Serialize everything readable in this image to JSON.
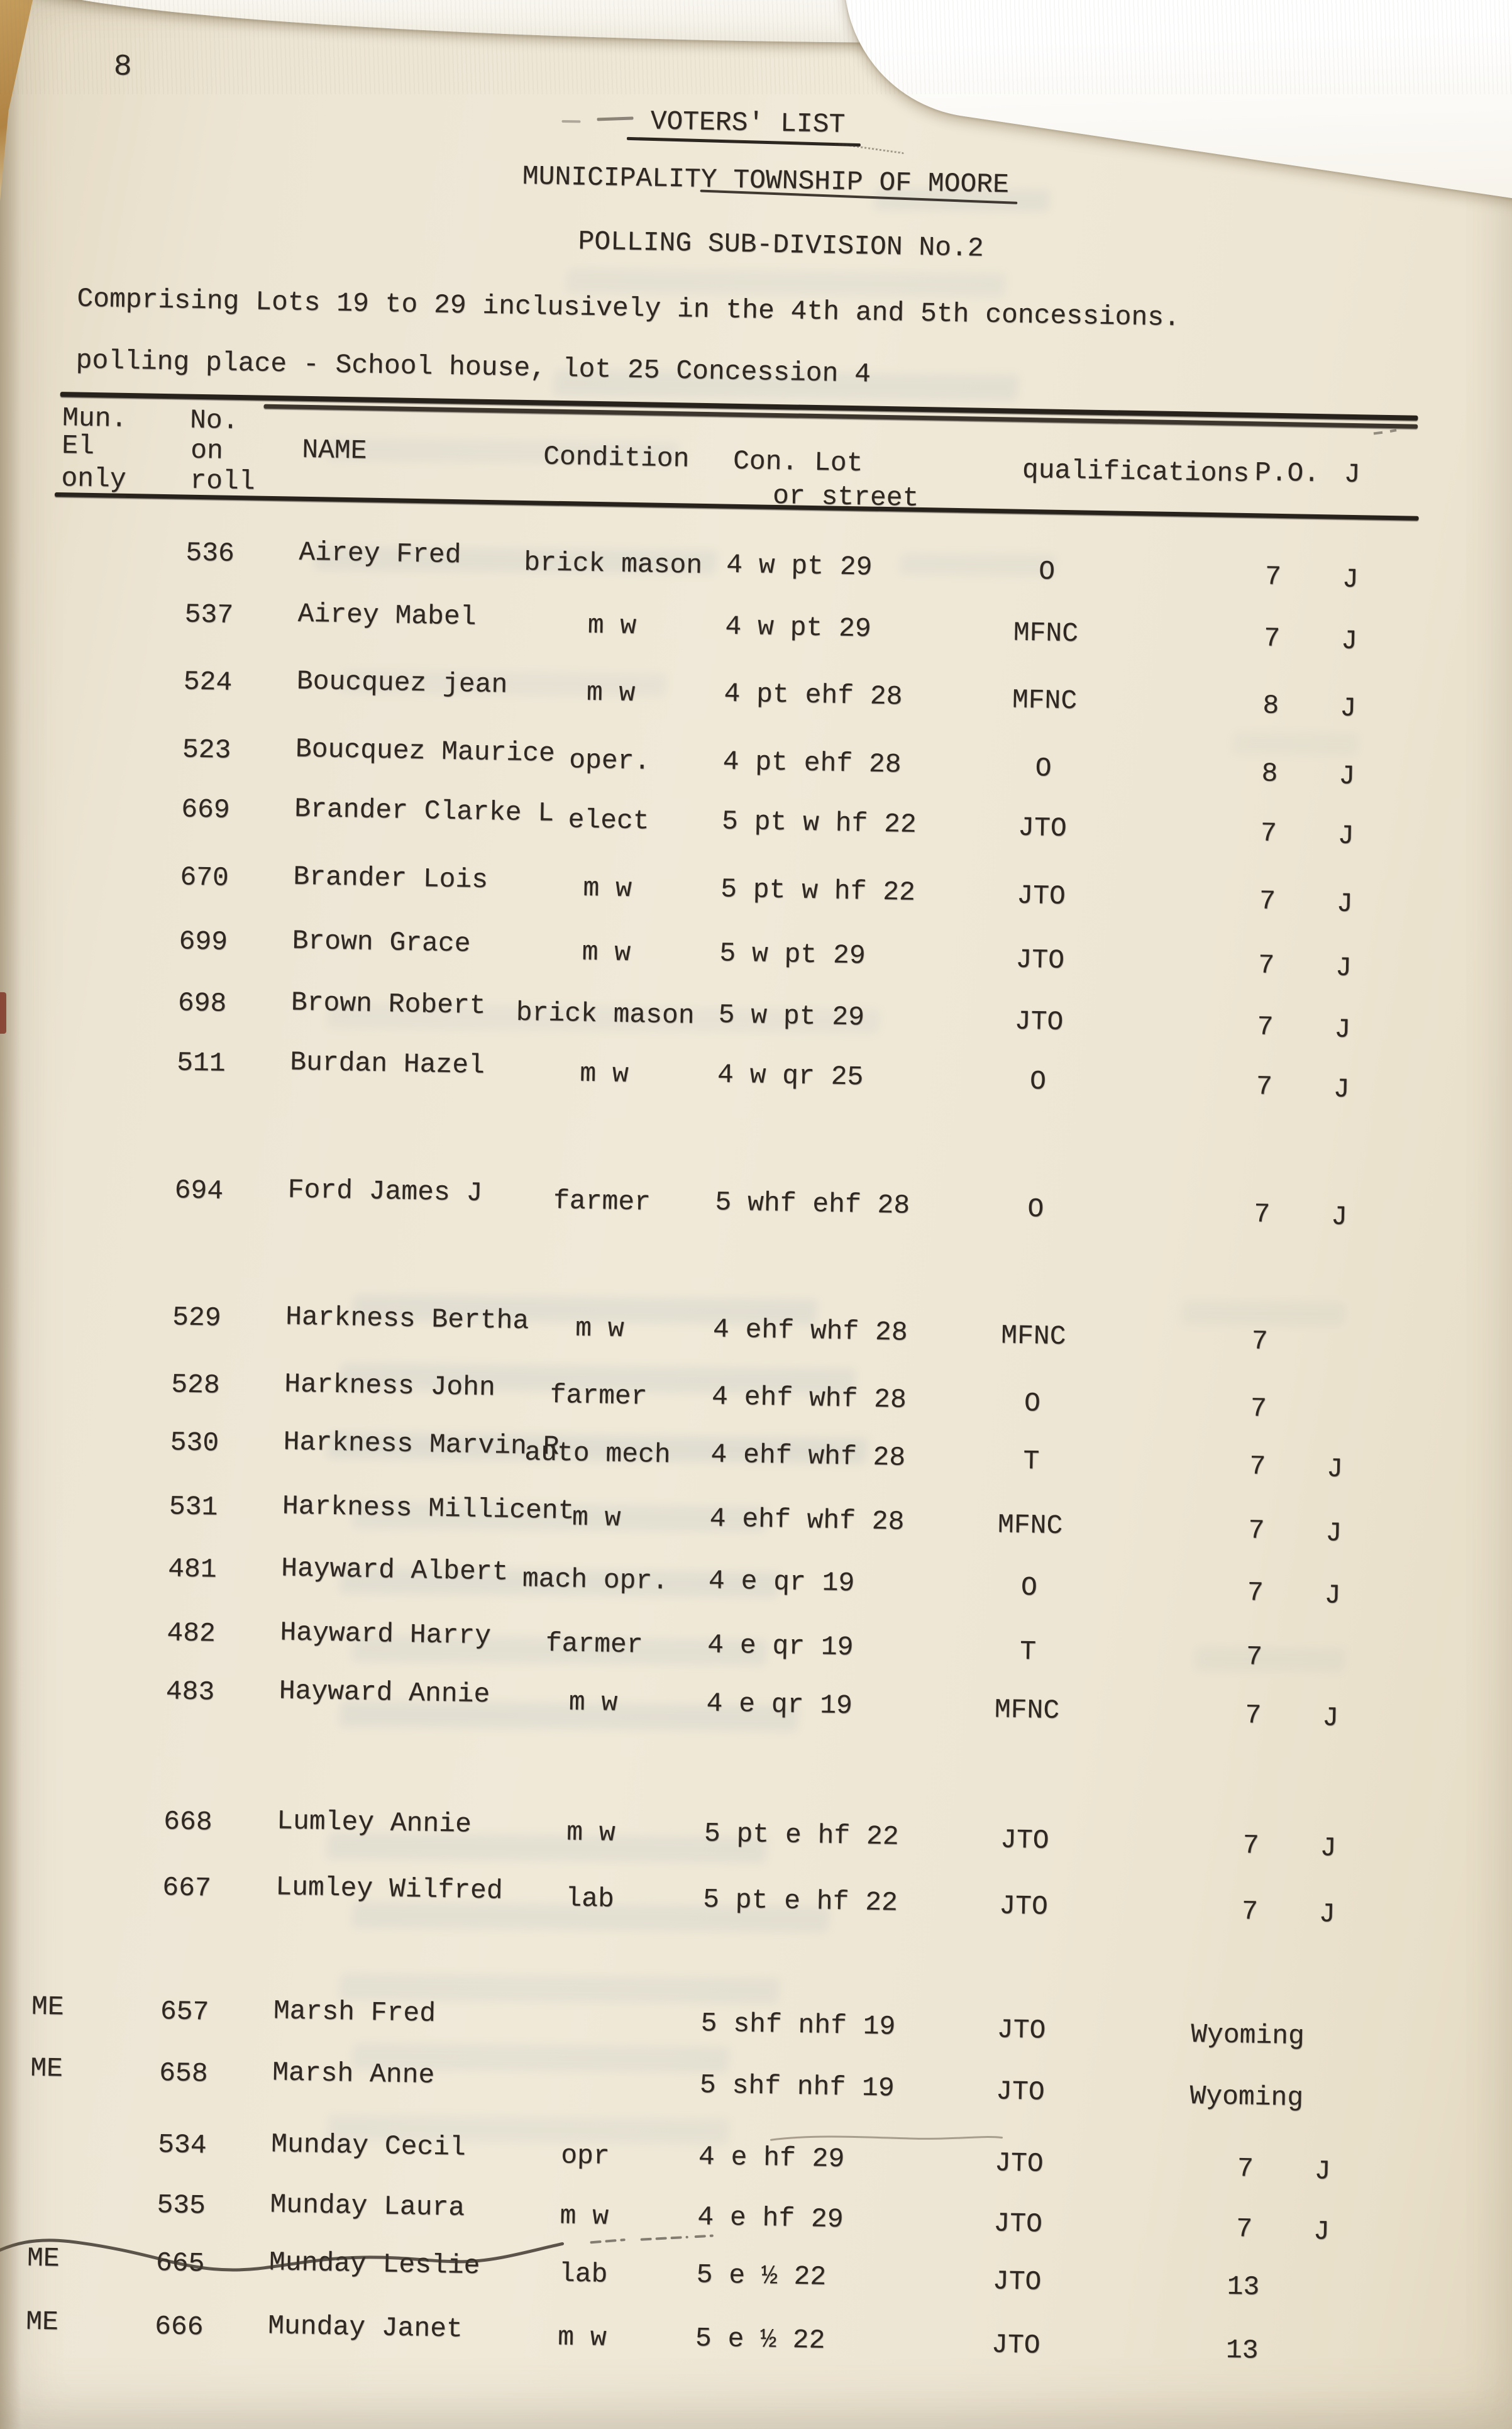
{
  "page": {
    "page_number": "8",
    "title": "VOTERS' LIST",
    "municipality_line": "MUNICIPALITY TOWNSHIP OF MOORE",
    "subdivision_line": "POLLING SUB-DIVISION No.2",
    "comprising_line": "Comprising Lots 19 to 29 inclusively in the 4th and 5th concessions.",
    "polling_place_line": "polling place - School house, lot 25 Concession 4"
  },
  "table": {
    "headers": {
      "mun": "Mun.",
      "el": "El",
      "only": "only",
      "no": "No.",
      "on": "on",
      "roll": "roll",
      "name": "NAME",
      "condition": "Condition",
      "con_lot": "Con. Lot",
      "or_street": "or street",
      "qualifications": "qualifications",
      "po": "P.O.",
      "j": "J"
    },
    "rows": [
      {
        "me": "",
        "roll": "536",
        "name": "Airey Fred",
        "condition": "brick mason",
        "con_lot": "4 w pt 29",
        "qualifications": "O",
        "po": "7",
        "j": "J"
      },
      {
        "me": "",
        "roll": "537",
        "name": "Airey Mabel",
        "condition": "m w",
        "con_lot": "4 w pt 29",
        "qualifications": "MFNC",
        "po": "7",
        "j": "J"
      },
      {
        "me": "",
        "roll": "524",
        "name": "Boucquez jean",
        "condition": "m w",
        "con_lot": "4 pt ehf 28",
        "qualifications": "MFNC",
        "po": "8",
        "j": "J"
      },
      {
        "me": "",
        "roll": "523",
        "name": "Boucquez Maurice",
        "condition": "oper.",
        "con_lot": "4 pt ehf 28",
        "qualifications": "O",
        "po": "8",
        "j": "J"
      },
      {
        "me": "",
        "roll": "669",
        "name": "Brander Clarke L",
        "condition": "elect",
        "con_lot": "5 pt w hf 22",
        "qualifications": "JTO",
        "po": "7",
        "j": "J"
      },
      {
        "me": "",
        "roll": "670",
        "name": "Brander Lois",
        "condition": "m w",
        "con_lot": "5 pt w hf 22",
        "qualifications": "JTO",
        "po": "7",
        "j": "J"
      },
      {
        "me": "",
        "roll": "699",
        "name": "Brown Grace",
        "condition": "m w",
        "con_lot": "5 w pt 29",
        "qualifications": "JTO",
        "po": "7",
        "j": "J"
      },
      {
        "me": "",
        "roll": "698",
        "name": "Brown Robert",
        "condition": "brick mason",
        "con_lot": "5 w pt 29",
        "qualifications": "JTO",
        "po": "7",
        "j": "J"
      },
      {
        "me": "",
        "roll": "511",
        "name": "Burdan Hazel",
        "condition": "m w",
        "con_lot": "4 w qr 25",
        "qualifications": "O",
        "po": "7",
        "j": "J"
      },
      {
        "me": "",
        "roll": "694",
        "name": "Ford James J",
        "condition": "farmer",
        "con_lot": "5 whf ehf 28",
        "qualifications": "O",
        "po": "7",
        "j": "J"
      },
      {
        "me": "",
        "roll": "529",
        "name": "Harkness Bertha",
        "condition": "m w",
        "con_lot": "4 ehf whf 28",
        "qualifications": "MFNC",
        "po": "7",
        "j": ""
      },
      {
        "me": "",
        "roll": "528",
        "name": "Harkness John",
        "condition": "farmer",
        "con_lot": "4 ehf whf 28",
        "qualifications": "O",
        "po": "7",
        "j": ""
      },
      {
        "me": "",
        "roll": "530",
        "name": "Harkness Marvin R",
        "condition": "auto mech",
        "con_lot": "4 ehf whf 28",
        "qualifications": "T",
        "po": "7",
        "j": "J"
      },
      {
        "me": "",
        "roll": "531",
        "name": "Harkness Millicent",
        "condition": "m w",
        "con_lot": "4 ehf whf 28",
        "qualifications": "MFNC",
        "po": "7",
        "j": "J"
      },
      {
        "me": "",
        "roll": "481",
        "name": "Hayward Albert",
        "condition": "mach opr.",
        "con_lot": "4 e qr 19",
        "qualifications": "O",
        "po": "7",
        "j": "J"
      },
      {
        "me": "",
        "roll": "482",
        "name": "Hayward Harry",
        "condition": "farmer",
        "con_lot": "4 e qr 19",
        "qualifications": "T",
        "po": "7",
        "j": ""
      },
      {
        "me": "",
        "roll": "483",
        "name": "Hayward Annie",
        "condition": "m w",
        "con_lot": "4 e qr 19",
        "qualifications": "MFNC",
        "po": "7",
        "j": "J"
      },
      {
        "me": "",
        "roll": "668",
        "name": "Lumley Annie",
        "condition": "m w",
        "con_lot": "5 pt e hf 22",
        "qualifications": "JTO",
        "po": "7",
        "j": "J"
      },
      {
        "me": "",
        "roll": "667",
        "name": "Lumley Wilfred",
        "condition": "lab",
        "con_lot": "5 pt e hf 22",
        "qualifications": "JTO",
        "po": "7",
        "j": "J"
      },
      {
        "me": "ME",
        "roll": "657",
        "name": "Marsh Fred",
        "condition": "",
        "con_lot": "5 shf nhf 19",
        "qualifications": "JTO",
        "po": "Wyoming",
        "j": ""
      },
      {
        "me": "ME",
        "roll": "658",
        "name": "Marsh Anne",
        "condition": "",
        "con_lot": "5 shf nhf 19",
        "qualifications": "JTO",
        "po": "Wyoming",
        "j": ""
      },
      {
        "me": "",
        "roll": "534",
        "name": "Munday Cecil",
        "condition": "opr",
        "con_lot": "4 e hf 29",
        "qualifications": "JTO",
        "po": "7",
        "j": "J"
      },
      {
        "me": "",
        "roll": "535",
        "name": "Munday Laura",
        "condition": "m w",
        "con_lot": "4 e hf 29",
        "qualifications": "JTO",
        "po": "7",
        "j": "J"
      },
      {
        "me": "ME",
        "roll": "665",
        "name": "Munday Leslie",
        "condition": "lab",
        "con_lot": "5 e ½ 22",
        "qualifications": "JTO",
        "po": "13",
        "j": "",
        "struck": true
      },
      {
        "me": "ME",
        "roll": "666",
        "name": "Munday Janet",
        "condition": "m w",
        "con_lot": "5 e ½ 22",
        "qualifications": "JTO",
        "po": "13",
        "j": ""
      }
    ]
  }
}
